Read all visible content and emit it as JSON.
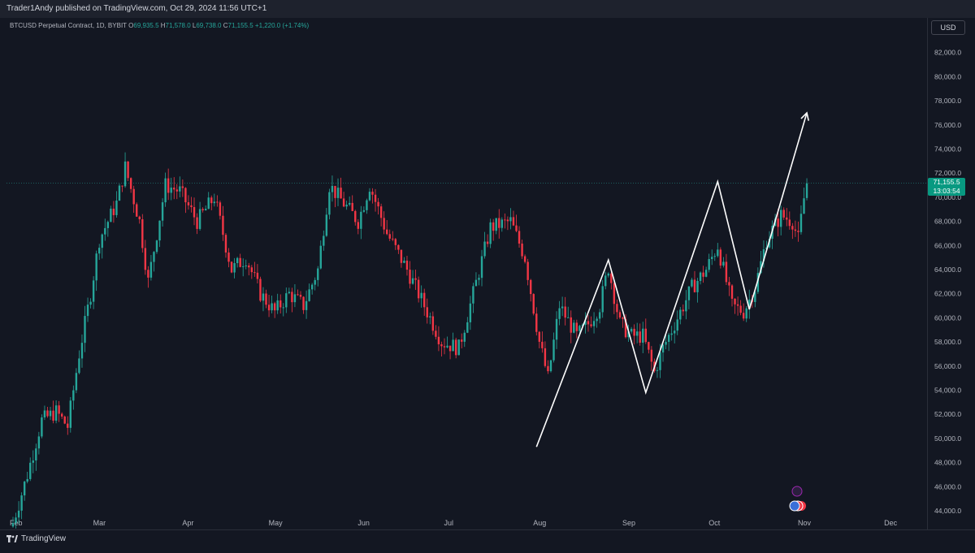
{
  "header": {
    "publisher": "Trader1Andy published on TradingView.com, Oct 29, 2024 11:56 UTC+1"
  },
  "legend": {
    "symbol": "BTCUSD Perpetual Contract, 1D, BYBIT",
    "open_label": "O",
    "open": "69,935.5",
    "high_label": "H",
    "high": "71,578.0",
    "low_label": "L",
    "low": "69,738.0",
    "close_label": "C",
    "close": "71,155.5",
    "change": "+1,220.0 (+1.74%)"
  },
  "currency_button": "USD",
  "last_price": {
    "price": "71,155.5",
    "countdown": "13:03:54"
  },
  "brand": "TradingView",
  "colors": {
    "up": "#26a69a",
    "down": "#f23645",
    "background": "#131722",
    "drawing": "#ffffff"
  },
  "chart_data": {
    "type": "candlestick",
    "symbol": "BTCUSD",
    "interval": "1D",
    "ylim": [
      43000,
      84000
    ],
    "y_ticks": [
      "44,000.0",
      "46,000.0",
      "48,000.0",
      "50,000.0",
      "52,000.0",
      "54,000.0",
      "56,000.0",
      "58,000.0",
      "60,000.0",
      "62,000.0",
      "64,000.0",
      "66,000.0",
      "68,000.0",
      "70,000.0",
      "72,000.0",
      "74,000.0",
      "76,000.0",
      "78,000.0",
      "80,000.0",
      "82,000.0"
    ],
    "y_tick_values": [
      44000,
      46000,
      48000,
      50000,
      52000,
      54000,
      56000,
      58000,
      60000,
      62000,
      64000,
      66000,
      68000,
      70000,
      72000,
      74000,
      76000,
      78000,
      80000,
      82000
    ],
    "x_ticks": [
      "Feb",
      "Mar",
      "Apr",
      "May",
      "Jun",
      "Jul",
      "Aug",
      "Sep",
      "Oct",
      "Nov",
      "Dec"
    ],
    "x_tick_days": [
      0,
      29,
      60,
      90,
      121,
      151,
      182,
      213,
      243,
      274,
      304
    ],
    "waypoints": [
      {
        "day": 0,
        "price": 43000
      },
      {
        "day": 5,
        "price": 47000
      },
      {
        "day": 10,
        "price": 51500
      },
      {
        "day": 15,
        "price": 52200
      },
      {
        "day": 19,
        "price": 51000
      },
      {
        "day": 23,
        "price": 57000
      },
      {
        "day": 27,
        "price": 62000
      },
      {
        "day": 30,
        "price": 66500
      },
      {
        "day": 36,
        "price": 69500
      },
      {
        "day": 39,
        "price": 72500
      },
      {
        "day": 44,
        "price": 68000
      },
      {
        "day": 47,
        "price": 63000
      },
      {
        "day": 53,
        "price": 71000
      },
      {
        "day": 58,
        "price": 70500
      },
      {
        "day": 64,
        "price": 68000
      },
      {
        "day": 70,
        "price": 70000
      },
      {
        "day": 76,
        "price": 64000
      },
      {
        "day": 81,
        "price": 65000
      },
      {
        "day": 86,
        "price": 62000
      },
      {
        "day": 91,
        "price": 60500
      },
      {
        "day": 96,
        "price": 62000
      },
      {
        "day": 101,
        "price": 61000
      },
      {
        "day": 106,
        "price": 64000
      },
      {
        "day": 110,
        "price": 71000
      },
      {
        "day": 115,
        "price": 69500
      },
      {
        "day": 120,
        "price": 68000
      },
      {
        "day": 124,
        "price": 71000
      },
      {
        "day": 130,
        "price": 67000
      },
      {
        "day": 137,
        "price": 64000
      },
      {
        "day": 143,
        "price": 61000
      },
      {
        "day": 149,
        "price": 58000
      },
      {
        "day": 155,
        "price": 57500
      },
      {
        "day": 160,
        "price": 62000
      },
      {
        "day": 166,
        "price": 67500
      },
      {
        "day": 173,
        "price": 68000
      },
      {
        "day": 178,
        "price": 65000
      },
      {
        "day": 183,
        "price": 58000
      },
      {
        "day": 186,
        "price": 55000
      },
      {
        "day": 190,
        "price": 61000
      },
      {
        "day": 196,
        "price": 58500
      },
      {
        "day": 200,
        "price": 59500
      },
      {
        "day": 204,
        "price": 61000
      },
      {
        "day": 207,
        "price": 64200
      },
      {
        "day": 211,
        "price": 59500
      },
      {
        "day": 215,
        "price": 58500
      },
      {
        "day": 219,
        "price": 58500
      },
      {
        "day": 223,
        "price": 55500
      },
      {
        "day": 226,
        "price": 57500
      },
      {
        "day": 231,
        "price": 60000
      },
      {
        "day": 236,
        "price": 62500
      },
      {
        "day": 241,
        "price": 64000
      },
      {
        "day": 245,
        "price": 66000
      },
      {
        "day": 250,
        "price": 61000
      },
      {
        "day": 254,
        "price": 60500
      },
      {
        "day": 258,
        "price": 62500
      },
      {
        "day": 262,
        "price": 66500
      },
      {
        "day": 267,
        "price": 68500
      },
      {
        "day": 271,
        "price": 68000
      },
      {
        "day": 273,
        "price": 66500
      },
      {
        "day": 275,
        "price": 69900
      },
      {
        "day": 276,
        "price": 71155.5
      }
    ],
    "last_candle": {
      "open": 69935.5,
      "high": 71578.0,
      "low": 69738.0,
      "close": 71155.5
    },
    "drawings": {
      "zigzag": [
        {
          "day": 182,
          "price": 49300
        },
        {
          "day": 207,
          "price": 64800
        },
        {
          "day": 220,
          "price": 53800
        },
        {
          "day": 245,
          "price": 71300
        },
        {
          "day": 256,
          "price": 60700
        }
      ],
      "arrow": [
        {
          "day": 256,
          "price": 60700
        },
        {
          "day": 276,
          "price": 77000
        }
      ]
    }
  }
}
